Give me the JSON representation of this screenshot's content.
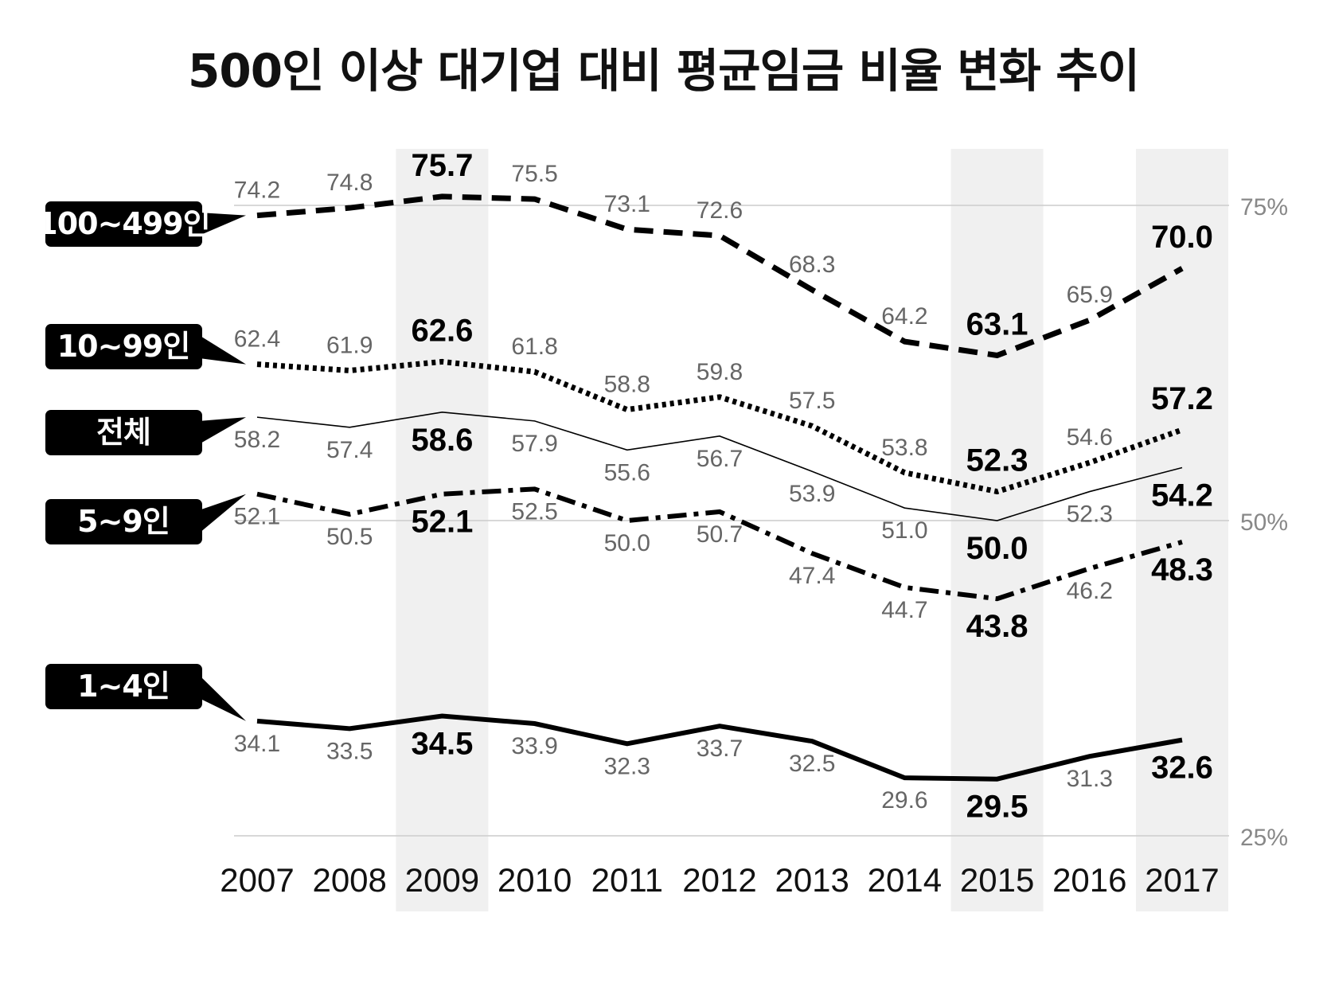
{
  "chart_data": {
    "type": "line",
    "title": "500인 이상 대기업 대비 평균임금 비율 변화 추이",
    "xlabel": "",
    "ylabel": "",
    "x": [
      "2007",
      "2008",
      "2009",
      "2010",
      "2011",
      "2012",
      "2013",
      "2014",
      "2015",
      "2016",
      "2017"
    ],
    "ylim": [
      25,
      75
    ],
    "yticks": [
      "75%",
      "50%",
      "25%"
    ],
    "ytick_values": [
      75,
      50,
      25
    ],
    "highlighted_years": [
      "2009",
      "2015",
      "2017"
    ],
    "grid": true,
    "series": [
      {
        "name": "100~499인",
        "style": "dashed",
        "values": [
          74.2,
          74.8,
          75.7,
          75.5,
          73.1,
          72.6,
          68.3,
          64.2,
          63.1,
          65.9,
          70.0
        ]
      },
      {
        "name": "10~99인",
        "style": "dotted",
        "values": [
          62.4,
          61.9,
          62.6,
          61.8,
          58.8,
          59.8,
          57.5,
          53.8,
          52.3,
          54.6,
          57.2
        ]
      },
      {
        "name": "전체",
        "style": "thin",
        "values": [
          58.2,
          57.4,
          58.6,
          57.9,
          55.6,
          56.7,
          53.9,
          51.0,
          50.0,
          52.3,
          54.2
        ]
      },
      {
        "name": "5~9인",
        "style": "dashdot",
        "values": [
          52.1,
          50.5,
          52.1,
          52.5,
          50.0,
          50.7,
          47.4,
          44.7,
          43.8,
          46.2,
          48.3
        ]
      },
      {
        "name": "1~4인",
        "style": "solid",
        "values": [
          34.1,
          33.5,
          34.5,
          33.9,
          32.3,
          33.7,
          32.5,
          29.6,
          29.5,
          31.3,
          32.6
        ]
      }
    ],
    "colors": {
      "line": "#000000",
      "label": "#666666",
      "highlight_band": "#f0f0f0",
      "grid": "#cccccc",
      "tick": "#888888"
    }
  }
}
